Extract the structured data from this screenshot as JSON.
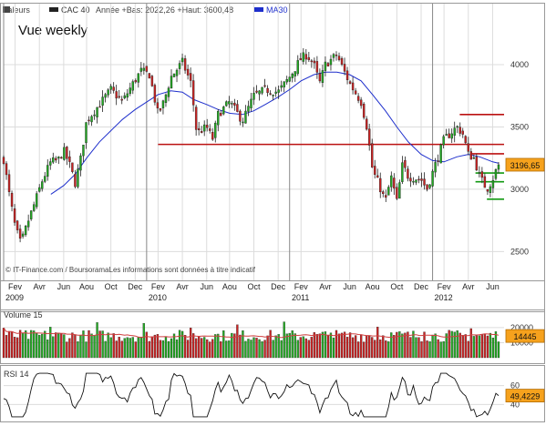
{
  "legend": {
    "valeurs_label": "Valeurs",
    "cac_label": "CAC 40",
    "cac_detail": "Année +Bas: 2022,26 +Haut: 3600,48",
    "ma_label": "MA30"
  },
  "title": "Vue weekly",
  "source": "© IT-Finance.com / BoursoramaLes informations sont données à titre indicatif",
  "colors": {
    "up": "#22aa22",
    "down": "#cc2222",
    "ma": "#1e2fcc",
    "resistance": "#bb1111",
    "support": "#119911",
    "volume_ma": "#d04040",
    "rsi": "#111111",
    "badge_fill": "#f6a21d",
    "grid": "#dcdcdc"
  },
  "chart_data": [
    {
      "type": "candlestick",
      "name": "price",
      "series_name": "CAC 40",
      "ylim": [
        2400,
        4300
      ],
      "yticks": [
        2500,
        3000,
        3500,
        4000
      ],
      "ytick_labels": [
        "2500",
        "3000",
        "3500",
        "4000"
      ],
      "xlim": [
        2009.0,
        2012.5
      ],
      "month_ticks": [
        {
          "label": "Fev",
          "x": 2009.08
        },
        {
          "label": "Avr",
          "x": 2009.25
        },
        {
          "label": "Jun",
          "x": 2009.42
        },
        {
          "label": "Aou",
          "x": 2009.58
        },
        {
          "label": "Oct",
          "x": 2009.75
        },
        {
          "label": "Dec",
          "x": 2009.92
        },
        {
          "label": "Fev",
          "x": 2010.08
        },
        {
          "label": "Avr",
          "x": 2010.25
        },
        {
          "label": "Jun",
          "x": 2010.42
        },
        {
          "label": "Aou",
          "x": 2010.58
        },
        {
          "label": "Oct",
          "x": 2010.75
        },
        {
          "label": "Dec",
          "x": 2010.92
        },
        {
          "label": "Fev",
          "x": 2011.08
        },
        {
          "label": "Avr",
          "x": 2011.25
        },
        {
          "label": "Jun",
          "x": 2011.42
        },
        {
          "label": "Aou",
          "x": 2011.58
        },
        {
          "label": "Oct",
          "x": 2011.75
        },
        {
          "label": "Dec",
          "x": 2011.92
        },
        {
          "label": "Fev",
          "x": 2012.08
        },
        {
          "label": "Avr",
          "x": 2012.25
        },
        {
          "label": "Jun",
          "x": 2012.42
        }
      ],
      "year_ticks": [
        {
          "label": "2009",
          "x": 2009.0
        },
        {
          "label": "2010",
          "x": 2010.0
        },
        {
          "label": "2011",
          "x": 2011.0
        },
        {
          "label": "2012",
          "x": 2012.0
        }
      ],
      "anchors": [
        [
          2009.0,
          3240
        ],
        [
          2009.04,
          2950
        ],
        [
          2009.08,
          2700
        ],
        [
          2009.12,
          2560
        ],
        [
          2009.17,
          2740
        ],
        [
          2009.22,
          2900
        ],
        [
          2009.27,
          3070
        ],
        [
          2009.33,
          3220
        ],
        [
          2009.38,
          3230
        ],
        [
          2009.42,
          3310
        ],
        [
          2009.46,
          3200
        ],
        [
          2009.5,
          3050
        ],
        [
          2009.54,
          3250
        ],
        [
          2009.58,
          3550
        ],
        [
          2009.67,
          3680
        ],
        [
          2009.75,
          3800
        ],
        [
          2009.83,
          3700
        ],
        [
          2009.9,
          3840
        ],
        [
          2009.96,
          3950
        ],
        [
          2010.02,
          3920
        ],
        [
          2010.08,
          3600
        ],
        [
          2010.12,
          3700
        ],
        [
          2010.17,
          3900
        ],
        [
          2010.25,
          4020
        ],
        [
          2010.31,
          3850
        ],
        [
          2010.35,
          3450
        ],
        [
          2010.42,
          3500
        ],
        [
          2010.46,
          3400
        ],
        [
          2010.5,
          3600
        ],
        [
          2010.58,
          3700
        ],
        [
          2010.67,
          3550
        ],
        [
          2010.75,
          3750
        ],
        [
          2010.83,
          3800
        ],
        [
          2010.92,
          3780
        ],
        [
          2011.0,
          3900
        ],
        [
          2011.08,
          4050
        ],
        [
          2011.12,
          4080
        ],
        [
          2011.17,
          4000
        ],
        [
          2011.21,
          3850
        ],
        [
          2011.25,
          4000
        ],
        [
          2011.33,
          4080
        ],
        [
          2011.38,
          3950
        ],
        [
          2011.42,
          3850
        ],
        [
          2011.5,
          3700
        ],
        [
          2011.54,
          3500
        ],
        [
          2011.58,
          3150
        ],
        [
          2011.62,
          3050
        ],
        [
          2011.67,
          2900
        ],
        [
          2011.71,
          3100
        ],
        [
          2011.75,
          2900
        ],
        [
          2011.79,
          3200
        ],
        [
          2011.83,
          3100
        ],
        [
          2011.92,
          3080
        ],
        [
          2011.96,
          3000
        ],
        [
          2012.02,
          3200
        ],
        [
          2012.08,
          3400
        ],
        [
          2012.17,
          3500
        ],
        [
          2012.21,
          3450
        ],
        [
          2012.25,
          3280
        ],
        [
          2012.29,
          3250
        ],
        [
          2012.33,
          3100
        ],
        [
          2012.38,
          3000
        ],
        [
          2012.42,
          3080
        ],
        [
          2012.46,
          3196.65
        ]
      ],
      "moving_average": {
        "name": "MA30",
        "points": [
          [
            2009.33,
            2960
          ],
          [
            2009.42,
            3030
          ],
          [
            2009.5,
            3120
          ],
          [
            2009.58,
            3250
          ],
          [
            2009.67,
            3380
          ],
          [
            2009.75,
            3470
          ],
          [
            2009.83,
            3560
          ],
          [
            2009.92,
            3640
          ],
          [
            2010.0,
            3700
          ],
          [
            2010.08,
            3760
          ],
          [
            2010.17,
            3790
          ],
          [
            2010.25,
            3780
          ],
          [
            2010.33,
            3720
          ],
          [
            2010.42,
            3680
          ],
          [
            2010.5,
            3640
          ],
          [
            2010.58,
            3610
          ],
          [
            2010.67,
            3600
          ],
          [
            2010.75,
            3630
          ],
          [
            2010.83,
            3680
          ],
          [
            2010.92,
            3740
          ],
          [
            2011.0,
            3800
          ],
          [
            2011.08,
            3870
          ],
          [
            2011.17,
            3920
          ],
          [
            2011.25,
            3940
          ],
          [
            2011.33,
            3940
          ],
          [
            2011.42,
            3920
          ],
          [
            2011.5,
            3870
          ],
          [
            2011.58,
            3760
          ],
          [
            2011.67,
            3630
          ],
          [
            2011.75,
            3500
          ],
          [
            2011.83,
            3380
          ],
          [
            2011.92,
            3280
          ],
          [
            2012.0,
            3230
          ],
          [
            2012.08,
            3220
          ],
          [
            2012.17,
            3260
          ],
          [
            2012.25,
            3280
          ],
          [
            2012.33,
            3260
          ],
          [
            2012.42,
            3220
          ],
          [
            2012.46,
            3210
          ]
        ]
      },
      "resistance_lines": [
        {
          "y": 3360,
          "x1": 2010.08,
          "x2": 2012.5
        },
        {
          "y": 3600,
          "x1": 2012.19,
          "x2": 2012.5
        },
        {
          "y": 3285,
          "x1": 2012.27,
          "x2": 2012.5
        }
      ],
      "support_lines": [
        {
          "y": 3130,
          "x1": 2012.3,
          "x2": 2012.5
        },
        {
          "y": 3060,
          "x1": 2012.3,
          "x2": 2012.5
        },
        {
          "y": 2920,
          "x1": 2012.38,
          "x2": 2012.5
        }
      ],
      "last_value": 3196.65,
      "last_value_label": "3196,65"
    },
    {
      "type": "bar",
      "name": "volume",
      "title": "Volume 15",
      "ylim": [
        0,
        26000
      ],
      "yticks": [
        10000,
        20000
      ],
      "ytick_labels": [
        "10000",
        "20000"
      ],
      "last_value": 14445,
      "last_value_label": "14445",
      "level_average": 14500,
      "level_amplitude": 4000
    },
    {
      "type": "line",
      "name": "rsi",
      "title": "RSI 14",
      "ylim": [
        25,
        75
      ],
      "yticks": [
        40,
        60
      ],
      "ytick_labels": [
        "40",
        "60"
      ],
      "last_value": 49.4229,
      "last_value_label": "49,4229"
    }
  ]
}
